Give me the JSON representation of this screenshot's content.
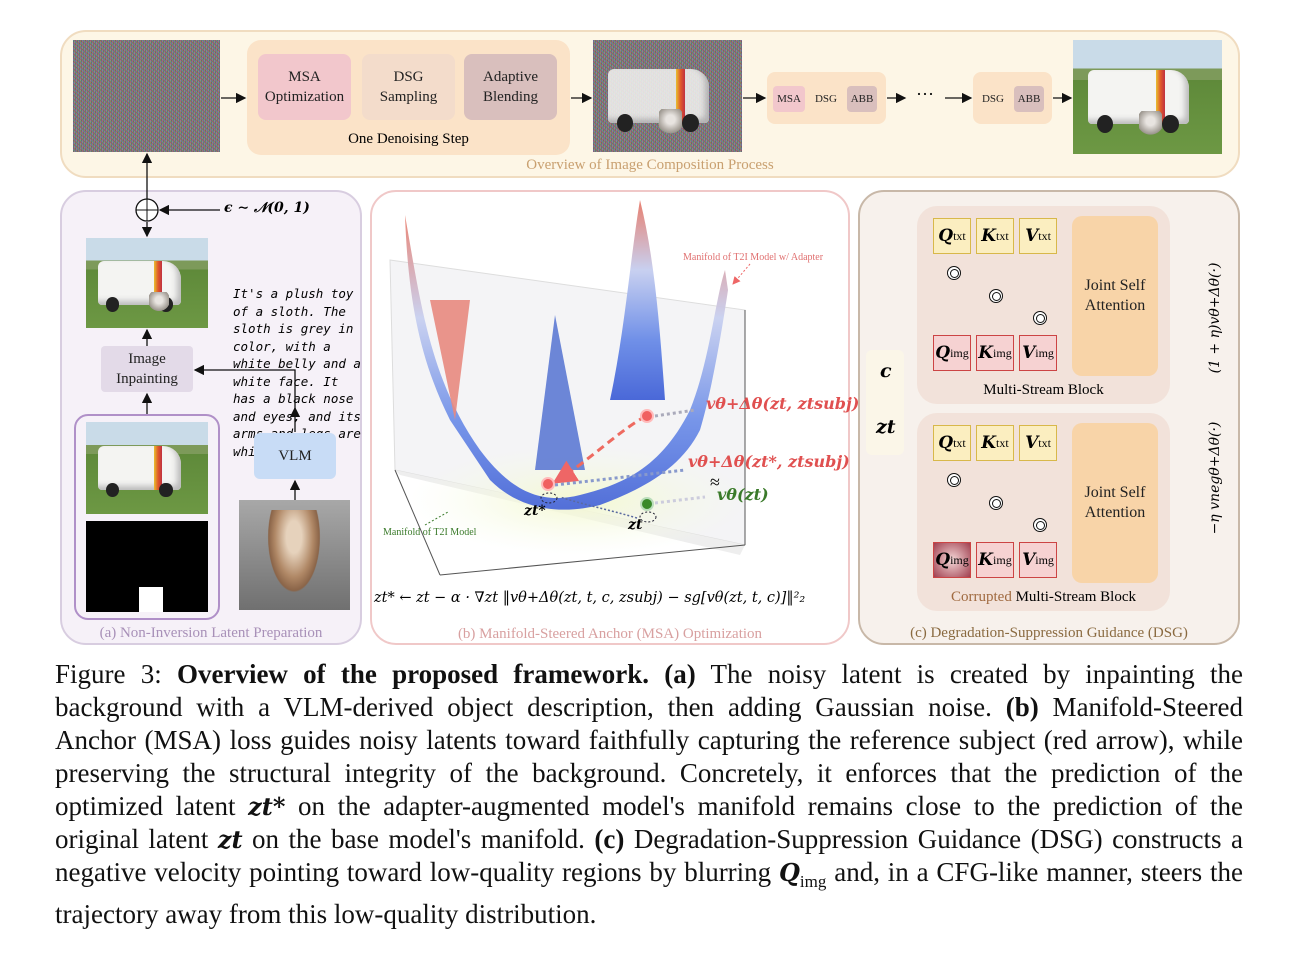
{
  "overview": {
    "caption": "Overview of Image Composition Process",
    "step_label": "One Denoising Step",
    "msa": "MSA Optimization",
    "dsg": "DSG Sampling",
    "ab": "Adaptive Blending",
    "small1": [
      "MSA",
      "DSG",
      "ABB"
    ],
    "ellipsis": "···",
    "small2": [
      "DSG",
      "ABB"
    ]
  },
  "panel_a": {
    "noise_formula": "ϵ ∼ 𝒩(0, 1)",
    "inpainting": "Image Inpainting",
    "vlm": "VLM",
    "description": "It's a plush toy of a sloth. The sloth is grey in color, with a white belly and a white face. It has a black nose and eyes, and its arms and legs are white.",
    "caption": "(a) Non-Inversion Latent Preparation"
  },
  "panel_b": {
    "manifold_adapter": "Manifold of T2I Model w/ Adapter",
    "manifold_base": "Manifold of T2I Model",
    "v_adapter_zt": "vθ+Δθ(zt, ztsubj)",
    "v_adapter_zstar": "vθ+Δθ(zt*, ztsubj)",
    "approx": "≈",
    "v_base": "vθ(zt)",
    "z_star": "zt*",
    "z_t": "zt",
    "equation": "zt* ← zt − α · ∇zt ‖vθ+Δθ(zt, t, c, zsubj) − sg[vθ(zt, t, c)]‖²₂",
    "caption": "(b) Manifold-Steered Anchor (MSA) Optimization"
  },
  "panel_c": {
    "c": "c",
    "zt": "zt",
    "joint": "Joint Self Attention",
    "block1": "Multi-Stream Block",
    "block2_prefix": "Corrupted",
    "block2": " Multi-Stream Block",
    "pos_term": "(1 + η)vθ+Δθ(·)",
    "neg_term": "−η vnegθ+Δθ(·)",
    "caption": "(c) Degradation-Suppression Guidance (DSG)"
  },
  "figure_caption": {
    "label": "Figure 3: ",
    "title": "Overview of the proposed framework.",
    "a": "(a)",
    "a_text": " The noisy latent is created by inpainting the background with a VLM-derived object description, then adding Gaussian noise. ",
    "b": "(b)",
    "b_text": " Manifold-Steered Anchor (MSA) loss guides noisy latents toward faithfully capturing the reference subject (red arrow), while preserving the structural integrity of the background. Concretely, it enforces that the prediction of the optimized latent ",
    "b_text2": " on the adapter-augmented model's manifold remains close to the prediction of the original latent ",
    "b_text3": " on the base model's manifold. ",
    "c": "(c)",
    "c_text": " Degradation-Suppression Guidance (DSG) constructs a negative velocity pointing toward low-quality regions by blurring ",
    "c_text2": " and, in a CFG-like manner, steers the trajectory away from this low-quality distribution."
  },
  "colors": {
    "msa": "#f2c7cc",
    "dsg": "#f3dccb",
    "abb": "#d9bfbd",
    "red_label": "#e05050",
    "green_label": "#3a7a2a"
  }
}
